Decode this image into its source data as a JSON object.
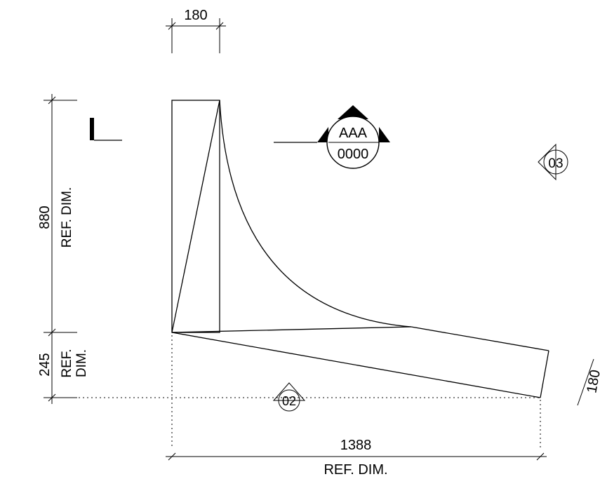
{
  "dimensions": {
    "top_width": "180",
    "left_upper_value": "880",
    "left_upper_ref": "REF. DIM.",
    "left_lower_value": "245",
    "left_lower_ref_line1": "REF.",
    "left_lower_ref_line2": "DIM.",
    "bottom_value": "1388",
    "bottom_ref": "REF. DIM.",
    "right_edge_value": "180"
  },
  "section_marker": {
    "top": "AAA",
    "bottom": "0000"
  },
  "view_markers": {
    "marker_03": "03",
    "marker_02": "02"
  }
}
